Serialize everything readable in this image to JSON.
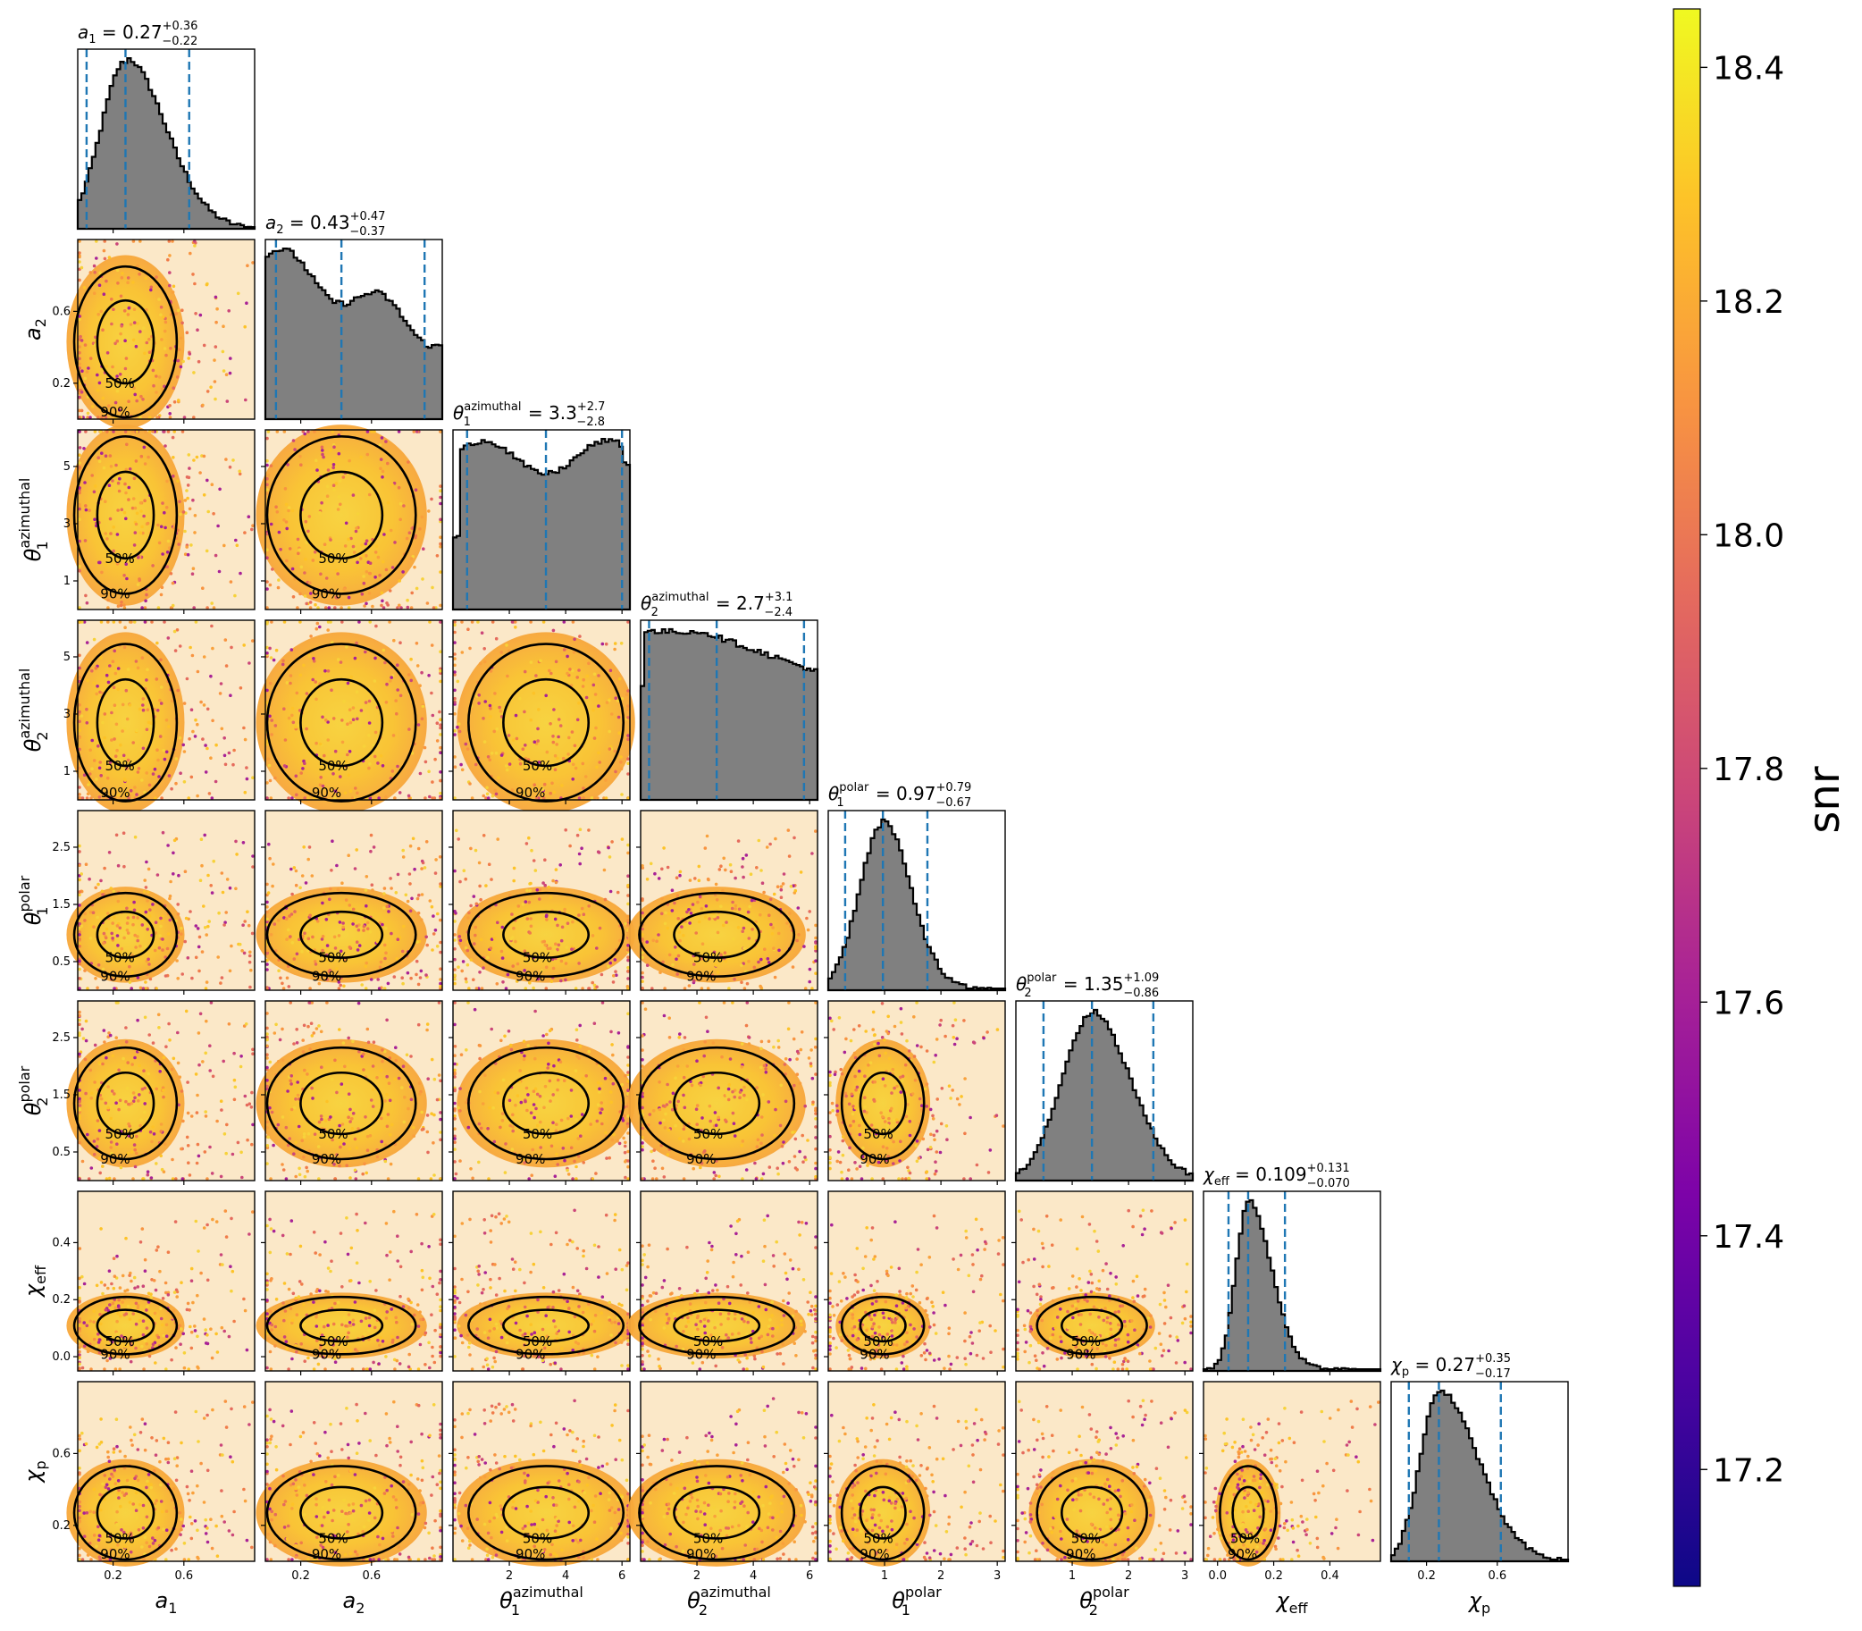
{
  "chart_data": {
    "type": "corner",
    "parameters": [
      {
        "key": "a1",
        "label": "a",
        "sub": "1",
        "sup": "",
        "title": {
          "value": "0.27",
          "plus": "+0.36",
          "minus": "−0.22"
        },
        "ticks": [
          "0.2",
          "0.6"
        ],
        "tick_values": [
          0.2,
          0.6
        ],
        "range": [
          0.0,
          1.0
        ],
        "quantiles": [
          0.05,
          0.27,
          0.63
        ]
      },
      {
        "key": "a2",
        "label": "a",
        "sub": "2",
        "sup": "",
        "title": {
          "value": "0.43",
          "plus": "+0.47",
          "minus": "−0.37"
        },
        "ticks": [
          "0.2",
          "0.6"
        ],
        "tick_values": [
          0.2,
          0.6
        ],
        "range": [
          0.0,
          1.0
        ],
        "quantiles": [
          0.06,
          0.43,
          0.9
        ]
      },
      {
        "key": "theta1_az",
        "label": "θ",
        "sub": "1",
        "sup": "azimuthal",
        "title": {
          "value": "3.3",
          "plus": "+2.7",
          "minus": "−2.8"
        },
        "ticks": [
          "2",
          "4",
          "6"
        ],
        "tick_values": [
          2,
          4,
          6
        ],
        "range": [
          0.0,
          6.28
        ],
        "quantiles": [
          0.5,
          3.3,
          6.0
        ]
      },
      {
        "key": "theta2_az",
        "label": "θ",
        "sub": "2",
        "sup": "azimuthal",
        "title": {
          "value": "2.7",
          "plus": "+3.1",
          "minus": "−2.4"
        },
        "ticks": [
          "2",
          "4",
          "6"
        ],
        "tick_values": [
          2,
          4,
          6
        ],
        "range": [
          0.0,
          6.28
        ],
        "quantiles": [
          0.3,
          2.7,
          5.8
        ]
      },
      {
        "key": "theta1_pol",
        "label": "θ",
        "sub": "1",
        "sup": "polar",
        "title": {
          "value": "0.97",
          "plus": "+0.79",
          "minus": "−0.67"
        },
        "ticks": [
          "1",
          "2",
          "3"
        ],
        "tick_values": [
          1,
          2,
          3
        ],
        "range": [
          0.0,
          3.14
        ],
        "quantiles": [
          0.3,
          0.97,
          1.76
        ]
      },
      {
        "key": "theta2_pol",
        "label": "θ",
        "sub": "2",
        "sup": "polar",
        "title": {
          "value": "1.35",
          "plus": "+1.09",
          "minus": "−0.86"
        },
        "ticks": [
          "1",
          "2",
          "3"
        ],
        "tick_values": [
          1,
          2,
          3
        ],
        "range": [
          0.0,
          3.14
        ],
        "quantiles": [
          0.49,
          1.35,
          2.44
        ]
      },
      {
        "key": "chi_eff",
        "label": "χ",
        "sub": "eff",
        "sup": "",
        "title": {
          "value": "0.109",
          "plus": "+0.131",
          "minus": "−0.070"
        },
        "ticks": [
          "0.0",
          "0.2",
          "0.4"
        ],
        "tick_values": [
          0.0,
          0.2,
          0.4
        ],
        "range": [
          -0.05,
          0.58
        ],
        "quantiles": [
          0.039,
          0.109,
          0.24
        ]
      },
      {
        "key": "chi_p",
        "label": "χ",
        "sub": "p",
        "sup": "",
        "title": {
          "value": "0.27",
          "plus": "+0.35",
          "minus": "−0.17"
        },
        "ticks": [
          "0.2",
          "0.6"
        ],
        "tick_values": [
          0.2,
          0.6
        ],
        "range": [
          0.0,
          1.0
        ],
        "quantiles": [
          0.1,
          0.27,
          0.62
        ]
      }
    ],
    "y_ticks": {
      "a2": [
        "0.2",
        "0.6"
      ],
      "theta1_az": [
        "1",
        "3",
        "5"
      ],
      "theta2_az": [
        "1",
        "3",
        "5"
      ],
      "theta1_pol": [
        "0.5",
        "1.5",
        "2.5"
      ],
      "theta2_pol": [
        "0.5",
        "1.5",
        "2.5"
      ],
      "chi_eff": [
        "0.0",
        "0.2",
        "0.4"
      ],
      "chi_p": [
        "0.2",
        "0.6"
      ]
    },
    "y_tick_values": {
      "a2": [
        0.2,
        0.6
      ],
      "theta1_az": [
        1,
        3,
        5
      ],
      "theta2_az": [
        1,
        3,
        5
      ],
      "theta1_pol": [
        0.5,
        1.5,
        2.5
      ],
      "theta2_pol": [
        0.5,
        1.5,
        2.5
      ],
      "chi_eff": [
        0.0,
        0.2,
        0.4
      ],
      "chi_p": [
        0.2,
        0.6
      ]
    },
    "contour_labels": [
      "50%",
      "90%"
    ],
    "colorbar": {
      "label": "snr",
      "colormap": "plasma",
      "range": [
        17.1,
        18.45
      ],
      "ticks": [
        "17.2",
        "17.4",
        "17.6",
        "17.8",
        "18.0",
        "18.2",
        "18.4"
      ],
      "tick_values": [
        17.2,
        17.4,
        17.6,
        17.8,
        18.0,
        18.2,
        18.4
      ]
    },
    "colors": {
      "histogram_fill": "#808080",
      "quantile_line": "#1f77b4",
      "contour": "#000000"
    }
  }
}
